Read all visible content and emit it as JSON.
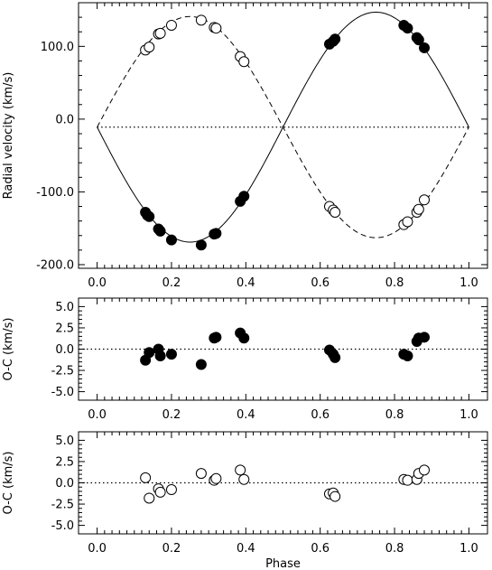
{
  "chart_data": [
    {
      "type": "line",
      "xlabel": "",
      "ylabel": "Radial velocity (km/s)",
      "xlim": [
        -0.05,
        1.05
      ],
      "ylim": [
        -205,
        160
      ],
      "xticks": [
        "0.0",
        "0.2",
        "0.4",
        "0.6",
        "0.8",
        "1.0"
      ],
      "yticks": [
        "-200.0",
        "-100.0",
        "0.0",
        "100.0"
      ],
      "ytick_values": [
        -200,
        -100,
        0,
        100
      ],
      "gamma": -11,
      "model": {
        "solid_amplitude": 158,
        "dashed_amplitude": 152,
        "period_phase": 1
      },
      "series": [
        {
          "marker": "filled",
          "line": "solid",
          "x": [
            0.13,
            0.135,
            0.14,
            0.165,
            0.17,
            0.2,
            0.28,
            0.315,
            0.32,
            0.385,
            0.395,
            0.625,
            0.635,
            0.64,
            0.825,
            0.835,
            0.86,
            0.865,
            0.88
          ],
          "y": [
            -128,
            -132,
            -134,
            -151,
            -154,
            -166,
            -173,
            -158,
            -157,
            -113,
            -106,
            103,
            107,
            110,
            129,
            125,
            112,
            109,
            98
          ]
        },
        {
          "marker": "open",
          "line": "dashed",
          "x": [
            0.13,
            0.14,
            0.165,
            0.17,
            0.2,
            0.28,
            0.315,
            0.32,
            0.385,
            0.395,
            0.625,
            0.635,
            0.64,
            0.825,
            0.835,
            0.86,
            0.865,
            0.88
          ],
          "y": [
            95,
            99,
            117,
            118,
            129,
            136,
            126,
            125,
            86,
            79,
            -120,
            -125,
            -128,
            -145,
            -141,
            -128,
            -124,
            -111
          ]
        }
      ]
    },
    {
      "type": "scatter",
      "xlabel": "",
      "ylabel": "O-C (km/s)",
      "xlim": [
        -0.05,
        1.05
      ],
      "ylim": [
        -6,
        6
      ],
      "xticks": [
        "0.0",
        "0.2",
        "0.4",
        "0.6",
        "0.8",
        "1.0"
      ],
      "yticks": [
        "-5.0",
        "-2.5",
        "0.0",
        "2.5",
        "5.0"
      ],
      "ytick_values": [
        -5,
        -2.5,
        0,
        2.5,
        5
      ],
      "series": [
        {
          "marker": "filled",
          "x": [
            0.13,
            0.14,
            0.165,
            0.17,
            0.2,
            0.28,
            0.315,
            0.32,
            0.385,
            0.395,
            0.625,
            0.635,
            0.64,
            0.825,
            0.835,
            0.86,
            0.865,
            0.88
          ],
          "y": [
            -1.3,
            -0.4,
            0.0,
            -0.8,
            -0.6,
            -1.8,
            1.3,
            1.4,
            1.9,
            1.3,
            -0.1,
            -0.6,
            -1.0,
            -0.6,
            -0.8,
            0.9,
            1.3,
            1.4
          ]
        }
      ]
    },
    {
      "type": "scatter",
      "xlabel": "Phase",
      "ylabel": "O-C (km/s)",
      "xlim": [
        -0.05,
        1.05
      ],
      "ylim": [
        -6,
        6
      ],
      "xticks": [
        "0.0",
        "0.2",
        "0.4",
        "0.6",
        "0.8",
        "1.0"
      ],
      "yticks": [
        "-5.0",
        "-2.5",
        "0.0",
        "2.5",
        "5.0"
      ],
      "ytick_values": [
        -5,
        -2.5,
        0,
        2.5,
        5
      ],
      "series": [
        {
          "marker": "open",
          "x": [
            0.13,
            0.14,
            0.165,
            0.17,
            0.2,
            0.28,
            0.315,
            0.32,
            0.385,
            0.395,
            0.625,
            0.635,
            0.64,
            0.825,
            0.835,
            0.86,
            0.865,
            0.88
          ],
          "y": [
            0.6,
            -1.8,
            -0.7,
            -1.1,
            -0.8,
            1.1,
            0.3,
            0.5,
            1.5,
            0.4,
            -1.3,
            -1.2,
            -1.6,
            0.4,
            0.3,
            0.4,
            1.1,
            1.5
          ]
        }
      ]
    }
  ]
}
